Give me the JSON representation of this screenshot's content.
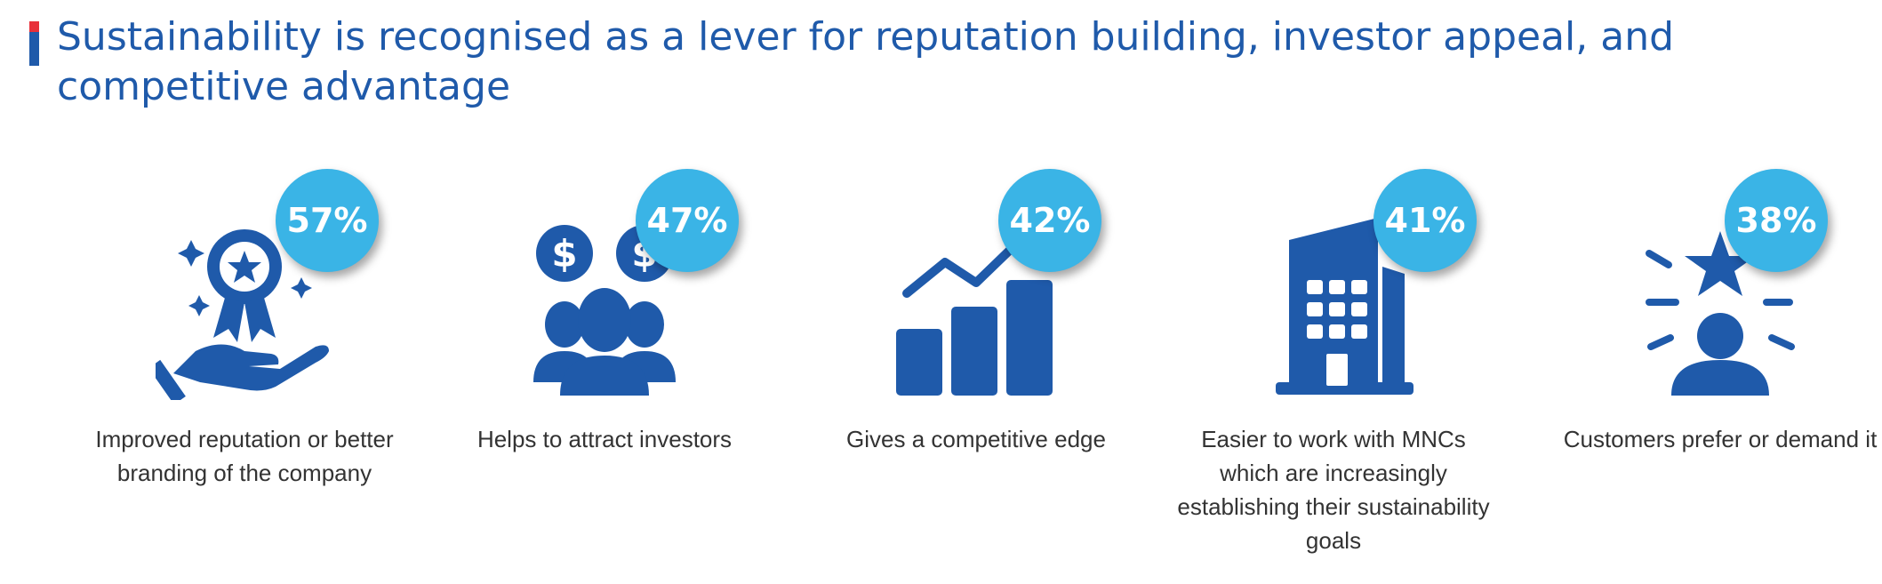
{
  "title": "Sustainability is recognised as a lever for reputation building, investor appeal, and competitive advantage",
  "colors": {
    "accent_red": "#e8303a",
    "brand_blue": "#1f5aaa",
    "badge_cyan": "#3ab4e6"
  },
  "chart_data": {
    "type": "bar",
    "categories": [
      "Improved reputation or better branding of the company",
      "Helps to attract investors",
      "Gives a competitive edge",
      "Easier to work with MNCs which are increasingly establishing their sustainability goals",
      "Customers prefer or demand it"
    ],
    "values": [
      57,
      47,
      42,
      41,
      38
    ],
    "value_labels": [
      "57%",
      "47%",
      "42%",
      "41%",
      "38%"
    ],
    "unit": "%"
  },
  "items": [
    {
      "label": "Improved reputation or better branding of the company",
      "percent": "57%",
      "icon": "award-hand-icon"
    },
    {
      "label": "Helps to attract investors",
      "percent": "47%",
      "icon": "investors-icon"
    },
    {
      "label": "Gives a competitive edge",
      "percent": "42%",
      "icon": "growth-chart-icon"
    },
    {
      "label": "Easier to work with MNCs which are increasingly establishing their sustainability goals",
      "percent": "41%",
      "icon": "building-icon"
    },
    {
      "label": "Customers prefer or demand it",
      "percent": "38%",
      "icon": "customer-star-icon"
    }
  ]
}
